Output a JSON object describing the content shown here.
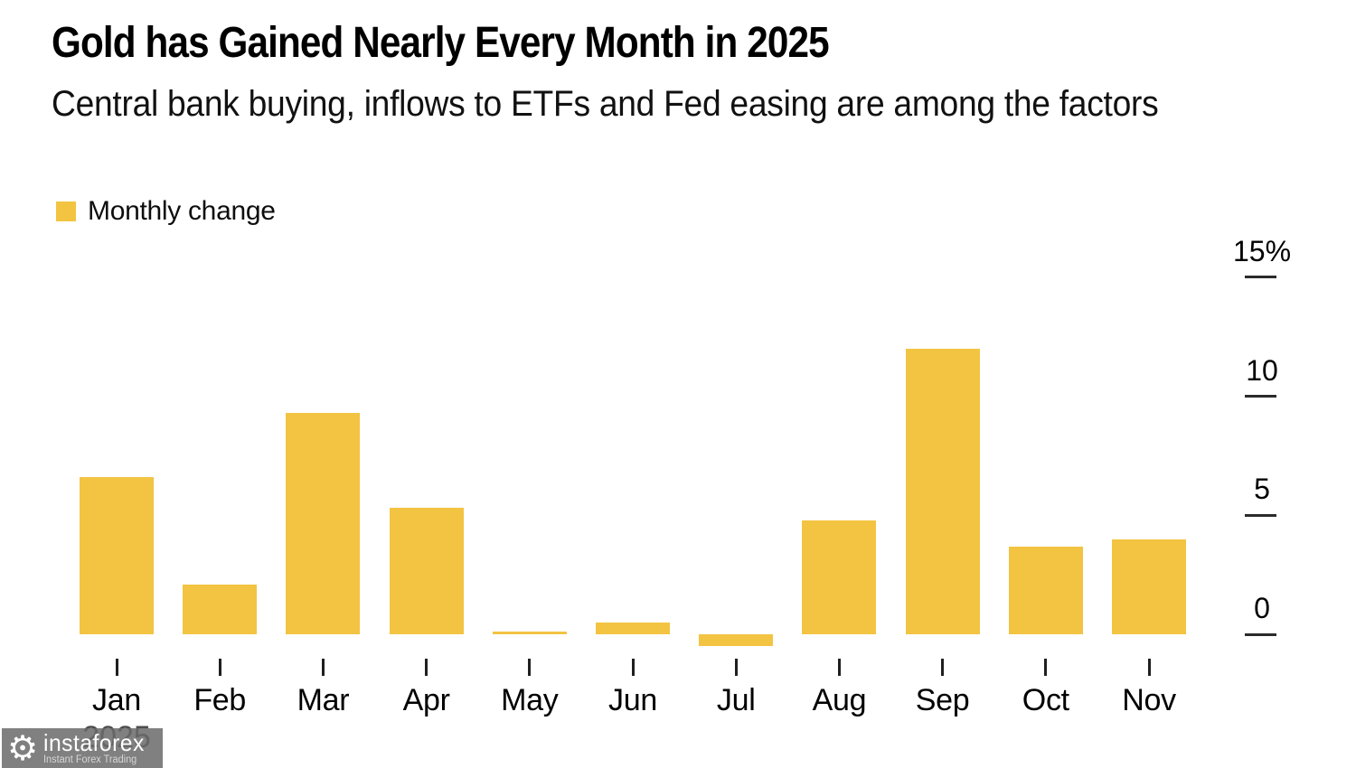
{
  "header": {
    "title": "Gold has Gained Nearly Every Month in 2025",
    "subtitle": "Central bank buying, inflows to ETFs and Fed easing are among the factors"
  },
  "legend": {
    "label": "Monthly change",
    "swatch_color": "#F3C442"
  },
  "chart_data": {
    "type": "bar",
    "title": "Gold has Gained Nearly Every Month in 2025",
    "subtitle": "Central bank buying, inflows to ETFs and Fed easing are among the factors",
    "series_name": "Monthly change",
    "categories": [
      "Jan",
      "Feb",
      "Mar",
      "Apr",
      "May",
      "Jun",
      "Jul",
      "Aug",
      "Sep",
      "Oct",
      "Nov"
    ],
    "values": [
      6.6,
      2.1,
      9.3,
      5.3,
      0.1,
      0.5,
      -0.5,
      4.8,
      12.0,
      3.7,
      4.0
    ],
    "unit": "%",
    "xlabel": "",
    "ylabel": "",
    "ylim": [
      -1,
      15
    ],
    "yticks": [
      0,
      5,
      10,
      15
    ],
    "ytick_labels": [
      "0",
      "5",
      "10",
      "15%"
    ],
    "x_axis_year": "2025",
    "bar_color": "#F3C442",
    "grid": false,
    "legend_position": "top-left",
    "y_axis_side": "right"
  },
  "watermark": {
    "brand": "instaforex",
    "tagline": "Instant Forex Trading",
    "gear_icon": "gear",
    "bg_color": "#6A6A6A"
  }
}
